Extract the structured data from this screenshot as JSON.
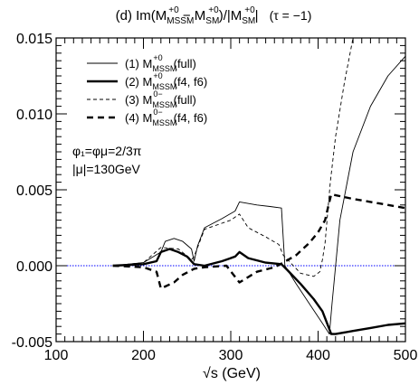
{
  "chart_data": {
    "type": "line",
    "title": {
      "prefix": "(d) Im(M",
      "sup1": "+0",
      "sub1": "MSSM",
      "mid": " − M",
      "sup2": "+0",
      "sub2": "SM",
      "mid2": ")/|M",
      "sup3": "+0",
      "sub3": "SM",
      "suffix": "|",
      "tau": "(τ = −1)"
    },
    "xlabel": "√s (GeV)",
    "ylabel": "",
    "xlim": [
      100,
      500
    ],
    "ylim": [
      -0.005,
      0.015
    ],
    "x_ticks": [
      "100",
      "200",
      "300",
      "400",
      "500"
    ],
    "y_ticks": [
      "-0.005",
      "0.000",
      "0.005",
      "0.010",
      "0.015"
    ],
    "x_tick_values": [
      100,
      200,
      300,
      400,
      500
    ],
    "y_tick_values": [
      -0.005,
      0.0,
      0.005,
      0.01,
      0.015
    ],
    "grid": false,
    "legend_position": "top-left",
    "annotations": [
      {
        "text": "φ₁=φμ=2/3π"
      },
      {
        "text": "|μ|=130GeV"
      }
    ],
    "zero_line_color": "#0000ff",
    "series": [
      {
        "name": "(1) M(full)",
        "legend": {
          "pre": "(1) M",
          "sup": "+0",
          "sub": "MSSM",
          "post": "(full)"
        },
        "style": "thin-solid",
        "x": [
          165,
          200,
          220,
          225,
          235,
          245,
          255,
          258,
          262,
          270,
          290,
          305,
          310,
          330,
          345,
          358,
          362,
          375,
          390,
          405,
          413,
          416,
          425,
          440,
          460,
          480,
          500
        ],
        "y": [
          0.0,
          0.0002,
          0.0009,
          0.0016,
          0.0018,
          0.0016,
          0.0011,
          0.0003,
          0.0013,
          0.0025,
          0.0031,
          0.0036,
          0.0042,
          0.004,
          0.0039,
          0.0038,
          0.0,
          -0.0012,
          -0.0025,
          -0.0038,
          -0.0045,
          -0.0025,
          0.003,
          0.0075,
          0.0105,
          0.0125,
          0.0138
        ]
      },
      {
        "name": "(2) M(f4, f6)",
        "legend": {
          "pre": "(2) M",
          "sup": "+0",
          "sub": "MSSM",
          "post": "(f4, f6)"
        },
        "style": "thick-solid",
        "x": [
          165,
          200,
          215,
          220,
          230,
          240,
          250,
          258,
          270,
          290,
          305,
          310,
          320,
          340,
          358,
          365,
          380,
          395,
          405,
          415,
          420,
          440,
          460,
          480,
          500
        ],
        "y": [
          0.0,
          0.0001,
          0.0003,
          0.0009,
          0.0011,
          0.0009,
          0.0006,
          0.0001,
          0.0,
          0.0003,
          0.0006,
          0.0009,
          0.0005,
          0.0002,
          0.0001,
          -0.0003,
          -0.0012,
          -0.0022,
          -0.003,
          -0.0045,
          -0.0045,
          -0.0043,
          -0.0041,
          -0.0039,
          -0.0038
        ]
      },
      {
        "name": "(3) M(full)",
        "legend": {
          "pre": "(3) M",
          "sup": "0−",
          "sub": "MSSM",
          "post": "(full)"
        },
        "style": "thin-dashed",
        "x": [
          165,
          200,
          220,
          240,
          255,
          258,
          270,
          300,
          310,
          320,
          340,
          355,
          360,
          380,
          395,
          402,
          405,
          408,
          411,
          414,
          420,
          430,
          440
        ],
        "y": [
          0.0,
          0.0002,
          0.0012,
          0.0011,
          0.0004,
          0.0006,
          0.0024,
          0.003,
          0.0034,
          0.0025,
          0.0019,
          0.0014,
          0.0007,
          -0.0005,
          -0.0007,
          -0.0004,
          0.0004,
          0.0015,
          0.0035,
          0.0055,
          0.0085,
          0.012,
          0.015
        ]
      },
      {
        "name": "(4) M(f4, f6)",
        "legend": {
          "pre": "(4) M",
          "sup": "0−",
          "sub": "MSSM",
          "post": "(f4, f6)"
        },
        "style": "thick-dashed",
        "x": [
          165,
          200,
          215,
          220,
          235,
          245,
          258,
          270,
          295,
          310,
          330,
          350,
          360,
          375,
          390,
          400,
          408,
          412,
          415,
          440,
          470,
          500
        ],
        "y": [
          0.0,
          -0.0001,
          -0.0004,
          -0.0015,
          -0.0011,
          -0.0006,
          -0.0002,
          -0.0001,
          0.0,
          -0.0011,
          -0.0004,
          -0.0001,
          0.0002,
          0.0007,
          0.0015,
          0.0022,
          0.003,
          0.004,
          0.0047,
          0.0044,
          0.0041,
          0.0038
        ]
      }
    ]
  }
}
